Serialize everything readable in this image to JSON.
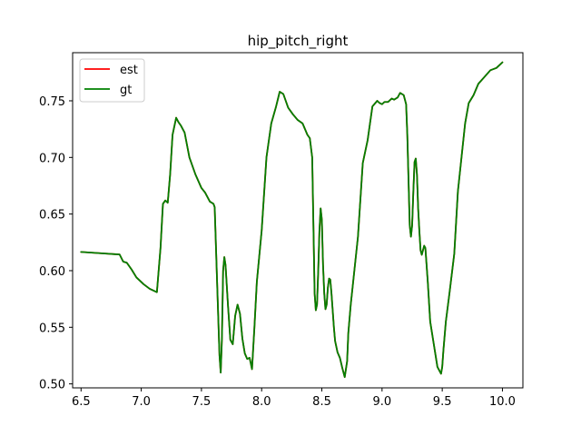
{
  "chart_data": {
    "type": "line",
    "title": "hip_pitch_right",
    "xlabel": "",
    "ylabel": "",
    "xlim": [
      6.43,
      10.17
    ],
    "ylim": [
      0.4965,
      0.7925
    ],
    "xticks": [
      6.5,
      7.0,
      7.5,
      8.0,
      8.5,
      9.0,
      9.5,
      10.0
    ],
    "xtick_labels": [
      "6.5",
      "7.0",
      "7.5",
      "8.0",
      "8.5",
      "9.0",
      "9.5",
      "10.0"
    ],
    "yticks": [
      0.5,
      0.55,
      0.6,
      0.65,
      0.7,
      0.75
    ],
    "ytick_labels": [
      "0.50",
      "0.55",
      "0.60",
      "0.65",
      "0.70",
      "0.75"
    ],
    "grid": false,
    "legend_position": "upper-left",
    "series": [
      {
        "name": "est",
        "color": "#ff0000",
        "x": [
          6.5,
          6.6,
          6.7,
          6.82,
          6.85,
          6.88,
          6.92,
          6.96,
          7.02,
          7.07,
          7.1,
          7.13,
          7.16,
          7.18,
          7.2,
          7.22,
          7.24,
          7.26,
          7.29,
          7.31,
          7.33,
          7.36,
          7.4,
          7.45,
          7.5,
          7.53,
          7.57,
          7.6,
          7.61,
          7.63,
          7.65,
          7.66,
          7.67,
          7.68,
          7.69,
          7.7,
          7.72,
          7.74,
          7.76,
          7.78,
          7.8,
          7.82,
          7.84,
          7.86,
          7.88,
          7.9,
          7.91,
          7.92,
          7.94,
          7.96,
          8.0,
          8.04,
          8.08,
          8.12,
          8.15,
          8.18,
          8.22,
          8.26,
          8.3,
          8.34,
          8.38,
          8.4,
          8.42,
          8.43,
          8.44,
          8.45,
          8.46,
          8.47,
          8.48,
          8.49,
          8.5,
          8.51,
          8.52,
          8.53,
          8.54,
          8.55,
          8.56,
          8.57,
          8.58,
          8.59,
          8.6,
          8.61,
          8.63,
          8.65,
          8.67,
          8.69,
          8.71,
          8.72,
          8.74,
          8.76,
          8.8,
          8.84,
          8.88,
          8.92,
          8.96,
          8.98,
          9.0,
          9.02,
          9.05,
          9.08,
          9.1,
          9.13,
          9.15,
          9.18,
          9.2,
          9.21,
          9.22,
          9.23,
          9.24,
          9.25,
          9.26,
          9.27,
          9.28,
          9.29,
          9.3,
          9.31,
          9.32,
          9.33,
          9.34,
          9.35,
          9.36,
          9.38,
          9.4,
          9.43,
          9.46,
          9.49,
          9.5,
          9.51,
          9.53,
          9.56,
          9.6,
          9.63,
          9.66,
          9.69,
          9.72,
          9.76,
          9.8,
          9.85,
          9.9,
          9.95,
          10.0
        ],
        "y": [
          0.6165,
          0.6158,
          0.6151,
          0.6143,
          0.608,
          0.607,
          0.601,
          0.594,
          0.588,
          0.584,
          0.5825,
          0.581,
          0.62,
          0.659,
          0.662,
          0.66,
          0.685,
          0.72,
          0.735,
          0.731,
          0.728,
          0.722,
          0.7,
          0.685,
          0.673,
          0.669,
          0.661,
          0.659,
          0.656,
          0.59,
          0.525,
          0.51,
          0.54,
          0.6,
          0.612,
          0.605,
          0.57,
          0.539,
          0.535,
          0.56,
          0.57,
          0.562,
          0.54,
          0.527,
          0.522,
          0.523,
          0.518,
          0.513,
          0.55,
          0.59,
          0.635,
          0.7,
          0.73,
          0.745,
          0.758,
          0.756,
          0.744,
          0.738,
          0.733,
          0.73,
          0.72,
          0.717,
          0.7,
          0.64,
          0.58,
          0.565,
          0.57,
          0.6,
          0.635,
          0.655,
          0.645,
          0.605,
          0.58,
          0.566,
          0.57,
          0.585,
          0.593,
          0.592,
          0.58,
          0.565,
          0.55,
          0.538,
          0.528,
          0.523,
          0.514,
          0.506,
          0.52,
          0.545,
          0.57,
          0.59,
          0.63,
          0.695,
          0.715,
          0.745,
          0.75,
          0.748,
          0.747,
          0.749,
          0.749,
          0.752,
          0.751,
          0.753,
          0.757,
          0.755,
          0.747,
          0.72,
          0.68,
          0.64,
          0.63,
          0.64,
          0.67,
          0.696,
          0.699,
          0.685,
          0.655,
          0.635,
          0.618,
          0.614,
          0.618,
          0.622,
          0.62,
          0.59,
          0.555,
          0.535,
          0.515,
          0.509,
          0.515,
          0.53,
          0.555,
          0.58,
          0.615,
          0.67,
          0.7,
          0.73,
          0.748,
          0.755,
          0.765,
          0.771,
          0.777,
          0.779,
          0.784
        ]
      },
      {
        "name": "gt",
        "color": "#008000",
        "x": [
          6.5,
          6.6,
          6.7,
          6.82,
          6.85,
          6.88,
          6.92,
          6.96,
          7.02,
          7.07,
          7.1,
          7.13,
          7.16,
          7.18,
          7.2,
          7.22,
          7.24,
          7.26,
          7.29,
          7.31,
          7.33,
          7.36,
          7.4,
          7.45,
          7.5,
          7.53,
          7.57,
          7.6,
          7.61,
          7.63,
          7.65,
          7.66,
          7.67,
          7.68,
          7.69,
          7.7,
          7.72,
          7.74,
          7.76,
          7.78,
          7.8,
          7.82,
          7.84,
          7.86,
          7.88,
          7.9,
          7.91,
          7.92,
          7.94,
          7.96,
          8.0,
          8.04,
          8.08,
          8.12,
          8.15,
          8.18,
          8.22,
          8.26,
          8.3,
          8.34,
          8.38,
          8.4,
          8.42,
          8.43,
          8.44,
          8.45,
          8.46,
          8.47,
          8.48,
          8.49,
          8.5,
          8.51,
          8.52,
          8.53,
          8.54,
          8.55,
          8.56,
          8.57,
          8.58,
          8.59,
          8.6,
          8.61,
          8.63,
          8.65,
          8.67,
          8.69,
          8.71,
          8.72,
          8.74,
          8.76,
          8.8,
          8.84,
          8.88,
          8.92,
          8.96,
          8.98,
          9.0,
          9.02,
          9.05,
          9.08,
          9.1,
          9.13,
          9.15,
          9.18,
          9.2,
          9.21,
          9.22,
          9.23,
          9.24,
          9.25,
          9.26,
          9.27,
          9.28,
          9.29,
          9.3,
          9.31,
          9.32,
          9.33,
          9.34,
          9.35,
          9.36,
          9.38,
          9.4,
          9.43,
          9.46,
          9.49,
          9.5,
          9.51,
          9.53,
          9.56,
          9.6,
          9.63,
          9.66,
          9.69,
          9.72,
          9.76,
          9.8,
          9.85,
          9.9,
          9.95,
          10.0
        ],
        "y": [
          0.6165,
          0.6158,
          0.6151,
          0.6143,
          0.608,
          0.607,
          0.601,
          0.594,
          0.588,
          0.584,
          0.5825,
          0.581,
          0.62,
          0.659,
          0.662,
          0.66,
          0.685,
          0.72,
          0.735,
          0.731,
          0.728,
          0.722,
          0.7,
          0.685,
          0.673,
          0.669,
          0.661,
          0.659,
          0.656,
          0.59,
          0.525,
          0.51,
          0.54,
          0.6,
          0.612,
          0.605,
          0.57,
          0.539,
          0.535,
          0.56,
          0.57,
          0.562,
          0.54,
          0.527,
          0.522,
          0.523,
          0.518,
          0.513,
          0.55,
          0.59,
          0.635,
          0.7,
          0.73,
          0.745,
          0.758,
          0.756,
          0.744,
          0.738,
          0.733,
          0.73,
          0.72,
          0.717,
          0.7,
          0.64,
          0.58,
          0.565,
          0.57,
          0.6,
          0.635,
          0.655,
          0.645,
          0.605,
          0.58,
          0.566,
          0.57,
          0.585,
          0.593,
          0.592,
          0.58,
          0.565,
          0.55,
          0.538,
          0.528,
          0.523,
          0.514,
          0.506,
          0.52,
          0.545,
          0.57,
          0.59,
          0.63,
          0.695,
          0.715,
          0.745,
          0.75,
          0.748,
          0.747,
          0.749,
          0.749,
          0.752,
          0.751,
          0.753,
          0.757,
          0.755,
          0.747,
          0.72,
          0.68,
          0.64,
          0.63,
          0.64,
          0.67,
          0.696,
          0.699,
          0.685,
          0.655,
          0.635,
          0.618,
          0.614,
          0.618,
          0.622,
          0.62,
          0.59,
          0.555,
          0.535,
          0.515,
          0.509,
          0.515,
          0.53,
          0.555,
          0.58,
          0.615,
          0.67,
          0.7,
          0.73,
          0.748,
          0.755,
          0.765,
          0.771,
          0.777,
          0.779,
          0.784
        ]
      }
    ]
  }
}
